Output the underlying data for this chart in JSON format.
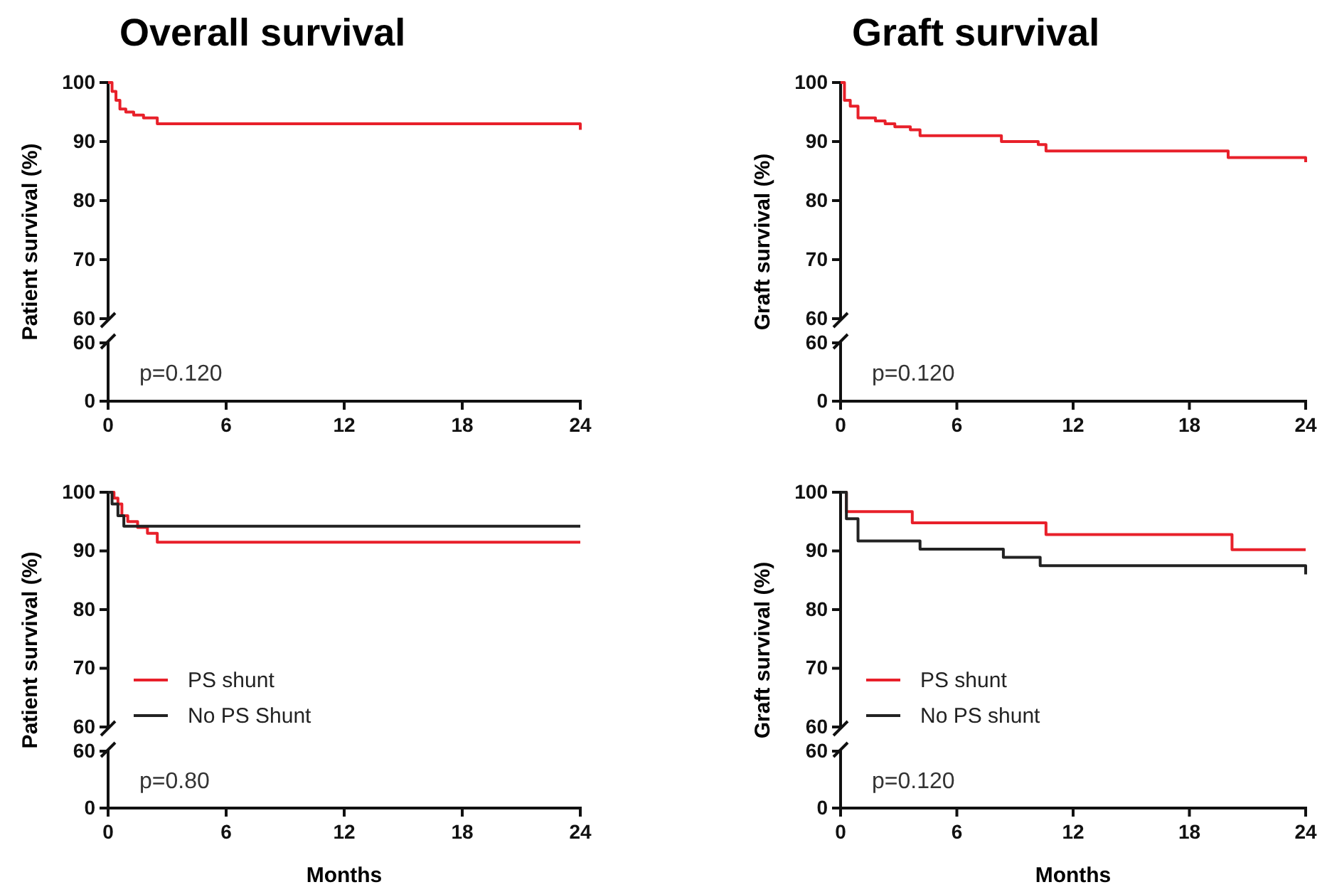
{
  "chart_data": [
    {
      "type": "step",
      "title": "Overall survival",
      "ylabel": "Patient survival (%)",
      "xlim": [
        0,
        24
      ],
      "ylim": [
        60,
        100
      ],
      "yticks": [
        60,
        70,
        80,
        90,
        100
      ],
      "tick_labels": "y",
      "series": [
        {
          "color": "#e8202a",
          "x": [
            0,
            0.2,
            0.4,
            0.6,
            0.9,
            1.3,
            1.8,
            2.5,
            24
          ],
          "values": [
            100,
            98.5,
            97,
            95.5,
            95,
            94.5,
            94,
            93,
            92
          ]
        }
      ]
    },
    {
      "type": "step",
      "xlim": [
        0,
        24
      ],
      "ylim": [
        0,
        60
      ],
      "yticks": [
        0,
        60
      ],
      "xticks": [
        0,
        6,
        12,
        18,
        24
      ],
      "annotations": [
        "p=0.120"
      ]
    },
    {
      "type": "step",
      "title": "Graft survival",
      "ylabel": "Graft survival (%)",
      "xlim": [
        0,
        24
      ],
      "ylim": [
        60,
        100
      ],
      "yticks": [
        60,
        70,
        80,
        90,
        100
      ],
      "tick_labels": "y",
      "series": [
        {
          "color": "#e8202a",
          "x": [
            0,
            0.2,
            0.5,
            0.9,
            1.8,
            2.3,
            2.8,
            3.6,
            4.1,
            8.3,
            10.2,
            10.6,
            20,
            24
          ],
          "values": [
            100,
            97,
            96,
            94,
            93.5,
            93,
            92.5,
            92,
            91,
            90,
            89.5,
            88.4,
            87.3,
            86.5
          ]
        }
      ]
    },
    {
      "type": "step",
      "xlim": [
        0,
        24
      ],
      "ylim": [
        0,
        60
      ],
      "yticks": [
        0,
        60
      ],
      "xticks": [
        0,
        6,
        12,
        18,
        24
      ],
      "annotations": [
        "p=0.120"
      ]
    },
    {
      "type": "step",
      "ylabel": "Patient survival (%)",
      "xlim": [
        0,
        24
      ],
      "ylim": [
        60,
        100
      ],
      "yticks": [
        60,
        70,
        80,
        90,
        100
      ],
      "tick_labels": "y",
      "legend": "bottom left",
      "series": [
        {
          "name": "PS shunt",
          "color": "#e8202a",
          "x": [
            0,
            0.3,
            0.5,
            0.7,
            1,
            1.5,
            2,
            2.5,
            24
          ],
          "values": [
            100,
            99,
            98,
            96,
            95,
            94,
            93,
            91.5,
            91.5
          ]
        },
        {
          "name": "No PS Shunt",
          "color": "#222222",
          "x": [
            0,
            0.2,
            0.5,
            0.8,
            24
          ],
          "values": [
            100,
            98,
            96,
            94.2,
            94.2
          ]
        }
      ]
    },
    {
      "type": "step",
      "xlabel": "Months",
      "xlim": [
        0,
        24
      ],
      "ylim": [
        0,
        60
      ],
      "yticks": [
        0,
        60
      ],
      "xticks": [
        0,
        6,
        12,
        18,
        24
      ],
      "annotations": [
        "p=0.80"
      ]
    },
    {
      "type": "step",
      "ylabel": "Graft survival (%)",
      "xlim": [
        0,
        24
      ],
      "ylim": [
        60,
        100
      ],
      "yticks": [
        60,
        70,
        80,
        90,
        100
      ],
      "tick_labels": "y",
      "legend": "bottom left",
      "series": [
        {
          "name": "PS shunt",
          "color": "#e8202a",
          "x": [
            0,
            0.3,
            3.7,
            10.6,
            20.2,
            24
          ],
          "values": [
            100,
            96.7,
            94.8,
            92.8,
            90.2,
            90.2
          ]
        },
        {
          "name": "No PS shunt",
          "color": "#222222",
          "x": [
            0,
            0.3,
            0.9,
            4.1,
            8.4,
            10.3,
            24
          ],
          "values": [
            100,
            95.5,
            91.7,
            90.3,
            88.9,
            87.5,
            86
          ]
        }
      ]
    },
    {
      "type": "step",
      "xlabel": "Months",
      "xlim": [
        0,
        24
      ],
      "ylim": [
        0,
        60
      ],
      "yticks": [
        0,
        60
      ],
      "xticks": [
        0,
        6,
        12,
        18,
        24
      ],
      "annotations": [
        "p=0.120"
      ]
    }
  ]
}
